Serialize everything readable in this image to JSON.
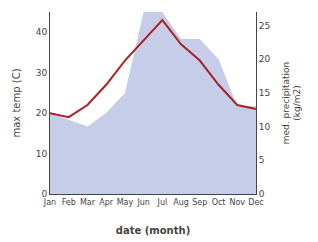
{
  "chart_data": {
    "type": "line",
    "categories": [
      "Jan",
      "Feb",
      "Mar",
      "Apr",
      "May",
      "Jun",
      "Jul",
      "Aug",
      "Sep",
      "Oct",
      "Nov",
      "Dec"
    ],
    "series": [
      {
        "type": "area",
        "color": "#c5cde8",
        "axis": "y2",
        "values": [
          12,
          11,
          10,
          12,
          15,
          27,
          27,
          23,
          23,
          20,
          13,
          13
        ]
      },
      {
        "type": "line",
        "color": "#aa2222",
        "axis": "y",
        "values": [
          20,
          19,
          22,
          27,
          33,
          38,
          43,
          37,
          33,
          27,
          22,
          21
        ]
      }
    ],
    "xlabel": "date (month)",
    "ylabel": "max temp (C)",
    "y2label": "med. precipitation\n(kg/m2)",
    "ylim": [
      0,
      45
    ],
    "yticks": [
      0,
      10,
      20,
      30,
      40
    ],
    "y2lim": [
      0,
      27
    ],
    "y2ticks": [
      0,
      5,
      10,
      15,
      20,
      25
    ],
    "grid": false
  }
}
